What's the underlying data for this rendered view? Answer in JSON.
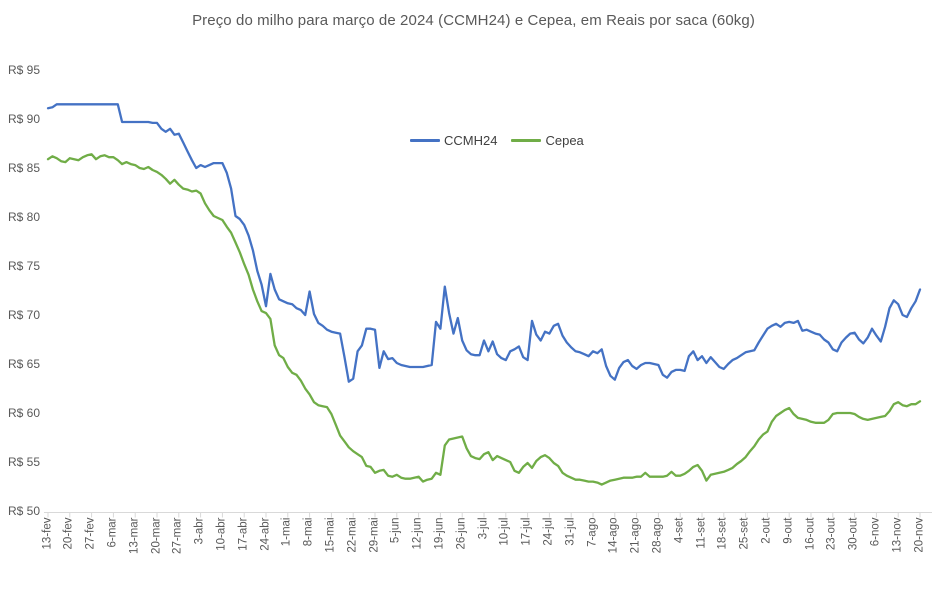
{
  "title": "Preço do milho para março de 2024 (CCMH24) e Cepea, em Reais por saca (60kg)",
  "legend": {
    "items": [
      {
        "label": "CCMH24",
        "color": "#4472c4"
      },
      {
        "label": "Cepea",
        "color": "#70ad47"
      }
    ]
  },
  "y_axis": {
    "tick_labels": [
      "R$ 95",
      "R$ 90",
      "R$ 85",
      "R$ 80",
      "R$ 75",
      "R$ 70",
      "R$ 65",
      "R$ 60",
      "R$ 55",
      "R$ 50"
    ],
    "min": 50,
    "max": 95,
    "step": 5,
    "prefix": "R$"
  },
  "x_axis": {
    "tick_labels": [
      "13-fev",
      "20-fev",
      "27-fev",
      "6-mar",
      "13-mar",
      "20-mar",
      "27-mar",
      "3-abr",
      "10-abr",
      "17-abr",
      "24-abr",
      "1-mai",
      "8-mai",
      "15-mai",
      "22-mai",
      "29-mai",
      "5-jun",
      "12-jun",
      "19-jun",
      "26-jun",
      "3-jul",
      "10-jul",
      "17-jul",
      "24-jul",
      "31-jul",
      "7-ago",
      "14-ago",
      "21-ago",
      "28-ago",
      "4-set",
      "11-set",
      "18-set",
      "25-set",
      "2-out",
      "9-out",
      "16-out",
      "23-out",
      "30-out",
      "6-nov",
      "13-nov",
      "20-nov"
    ],
    "axis_color": "#d9d9d9"
  },
  "chart_data": {
    "type": "line",
    "title": "Preço do milho para março de 2024 (CCMH24) e Cepea, em Reais por saca (60kg)",
    "xlabel": "",
    "ylabel": "",
    "ylim": [
      50,
      95
    ],
    "grid": false,
    "legend_position": "top-center-inside",
    "x_unit": "trading-day (daily points, one weekly tick label every 5 points)",
    "categories": [
      "13-fev",
      "20-fev",
      "27-fev",
      "6-mar",
      "13-mar",
      "20-mar",
      "27-mar",
      "3-abr",
      "10-abr",
      "17-abr",
      "24-abr",
      "1-mai",
      "8-mai",
      "15-mai",
      "22-mai",
      "29-mai",
      "5-jun",
      "12-jun",
      "19-jun",
      "26-jun",
      "3-jul",
      "10-jul",
      "17-jul",
      "24-jul",
      "31-jul",
      "7-ago",
      "14-ago",
      "21-ago",
      "28-ago",
      "4-set",
      "11-set",
      "18-set",
      "25-set",
      "2-out",
      "9-out",
      "16-out",
      "23-out",
      "30-out",
      "6-nov",
      "13-nov",
      "20-nov"
    ],
    "tick_every": 5,
    "series": [
      {
        "name": "CCMH24",
        "color": "#4472c4",
        "values": [
          91.2,
          91.3,
          91.6,
          91.6,
          91.6,
          91.6,
          91.6,
          91.6,
          91.6,
          91.6,
          91.6,
          91.6,
          91.6,
          91.6,
          91.6,
          91.6,
          91.6,
          89.8,
          89.8,
          89.8,
          89.8,
          89.8,
          89.8,
          89.8,
          89.7,
          89.7,
          89.1,
          88.8,
          89.1,
          88.5,
          88.6,
          87.7,
          86.8,
          85.9,
          85.1,
          85.4,
          85.2,
          85.4,
          85.6,
          85.6,
          85.6,
          84.6,
          83.0,
          80.2,
          79.9,
          79.3,
          78.2,
          76.7,
          74.6,
          73.2,
          71.0,
          74.3,
          72.7,
          71.7,
          71.5,
          71.3,
          71.2,
          70.8,
          70.6,
          70.1,
          72.5,
          70.2,
          69.3,
          69.0,
          68.6,
          68.4,
          68.3,
          68.2,
          65.8,
          63.3,
          63.6,
          66.4,
          67.0,
          68.7,
          68.7,
          68.6,
          64.7,
          66.4,
          65.6,
          65.7,
          65.2,
          65.0,
          64.9,
          64.8,
          64.8,
          64.8,
          64.8,
          64.9,
          65.0,
          69.4,
          68.7,
          73.0,
          70.3,
          68.2,
          69.8,
          67.5,
          66.5,
          66.1,
          66.0,
          66.0,
          67.5,
          66.4,
          67.4,
          66.1,
          65.7,
          65.5,
          66.4,
          66.6,
          66.9,
          65.8,
          65.5,
          69.5,
          68.1,
          67.5,
          68.4,
          68.2,
          69.0,
          69.2,
          68.0,
          67.3,
          66.8,
          66.4,
          66.3,
          66.1,
          65.9,
          66.4,
          66.2,
          66.6,
          64.9,
          63.9,
          63.5,
          64.7,
          65.3,
          65.5,
          64.9,
          64.6,
          65.0,
          65.2,
          65.2,
          65.1,
          65.0,
          64.0,
          63.7,
          64.3,
          64.5,
          64.5,
          64.4,
          65.9,
          66.4,
          65.5,
          65.9,
          65.2,
          65.8,
          65.3,
          64.8,
          64.6,
          65.1,
          65.5,
          65.7,
          66.0,
          66.3,
          66.4,
          66.5,
          67.3,
          68.0,
          68.7,
          69.0,
          69.2,
          68.9,
          69.3,
          69.4,
          69.3,
          69.5,
          68.5,
          68.6,
          68.4,
          68.2,
          68.1,
          67.6,
          67.3,
          66.6,
          66.4,
          67.3,
          67.8,
          68.2,
          68.3,
          67.6,
          67.2,
          67.8,
          68.7,
          68.0,
          67.4,
          68.9,
          70.8,
          71.6,
          71.2,
          70.1,
          69.9,
          70.8,
          71.5,
          72.7
        ]
      },
      {
        "name": "Cepea",
        "color": "#70ad47",
        "values": [
          86.0,
          86.3,
          86.1,
          85.8,
          85.7,
          86.1,
          86.0,
          85.9,
          86.2,
          86.4,
          86.5,
          86.0,
          86.3,
          86.4,
          86.2,
          86.2,
          85.9,
          85.5,
          85.7,
          85.5,
          85.4,
          85.1,
          85.0,
          85.2,
          84.9,
          84.7,
          84.4,
          84.0,
          83.5,
          83.9,
          83.4,
          83.0,
          82.9,
          82.7,
          82.8,
          82.5,
          81.5,
          80.8,
          80.2,
          80.0,
          79.8,
          79.1,
          78.5,
          77.5,
          76.5,
          75.3,
          74.2,
          72.7,
          71.5,
          70.5,
          70.3,
          69.7,
          67.0,
          66.0,
          65.7,
          64.8,
          64.2,
          64.0,
          63.4,
          62.6,
          62.0,
          61.2,
          60.9,
          60.8,
          60.7,
          60.0,
          58.9,
          57.8,
          57.2,
          56.6,
          56.2,
          55.9,
          55.6,
          54.7,
          54.6,
          54.0,
          54.2,
          54.3,
          53.7,
          53.6,
          53.8,
          53.5,
          53.4,
          53.4,
          53.5,
          53.6,
          53.1,
          53.3,
          53.4,
          54.0,
          53.8,
          56.8,
          57.4,
          57.5,
          57.6,
          57.7,
          56.5,
          55.7,
          55.5,
          55.4,
          55.9,
          56.1,
          55.3,
          55.7,
          55.5,
          55.3,
          55.1,
          54.2,
          54.0,
          54.6,
          55.0,
          54.5,
          55.2,
          55.6,
          55.8,
          55.5,
          55.0,
          54.7,
          54.0,
          53.7,
          53.5,
          53.3,
          53.3,
          53.2,
          53.1,
          53.1,
          53.0,
          52.8,
          53.0,
          53.2,
          53.3,
          53.4,
          53.5,
          53.5,
          53.5,
          53.6,
          53.6,
          54.0,
          53.6,
          53.6,
          53.6,
          53.6,
          53.7,
          54.1,
          53.7,
          53.7,
          53.9,
          54.2,
          54.6,
          54.8,
          54.2,
          53.2,
          53.8,
          53.9,
          54.0,
          54.1,
          54.3,
          54.5,
          54.9,
          55.2,
          55.6,
          56.2,
          56.7,
          57.4,
          57.9,
          58.2,
          59.2,
          59.8,
          60.1,
          60.4,
          60.6,
          60.0,
          59.6,
          59.5,
          59.4,
          59.2,
          59.1,
          59.1,
          59.1,
          59.4,
          60.0,
          60.1,
          60.1,
          60.1,
          60.1,
          60.0,
          59.7,
          59.5,
          59.4,
          59.5,
          59.6,
          59.7,
          59.8,
          60.3,
          61.0,
          61.2,
          60.9,
          60.8,
          61.0,
          61.0,
          61.3
        ]
      }
    ]
  }
}
